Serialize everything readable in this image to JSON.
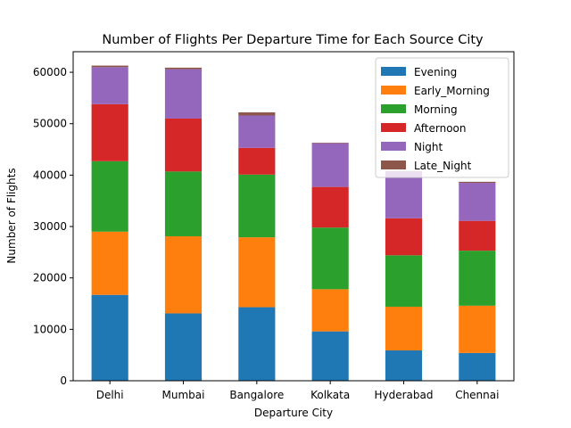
{
  "chart_data": {
    "type": "bar",
    "stacked": true,
    "title": "Number of Flights Per Departure Time for Each Source City",
    "xlabel": "Departure City",
    "ylabel": "Number of Flights",
    "categories": [
      "Delhi",
      "Mumbai",
      "Bangalore",
      "Kolkata",
      "Hyderabad",
      "Chennai"
    ],
    "ylim": [
      0,
      64000
    ],
    "yticks": [
      0,
      10000,
      20000,
      30000,
      40000,
      50000,
      60000
    ],
    "ytick_labels": [
      "0",
      "10000",
      "20000",
      "30000",
      "40000",
      "50000",
      "60000"
    ],
    "grid": false,
    "legend_position": "top-right",
    "series": [
      {
        "name": "Evening",
        "color": "#1f77b4",
        "values": [
          16700,
          13100,
          14300,
          9600,
          5900,
          5400
        ]
      },
      {
        "name": "Early_Morning",
        "color": "#ff7f0e",
        "values": [
          12300,
          15000,
          13600,
          8200,
          8500,
          9200
        ]
      },
      {
        "name": "Morning",
        "color": "#2ca02c",
        "values": [
          13700,
          12600,
          12200,
          12000,
          10000,
          10700
        ]
      },
      {
        "name": "Afternoon",
        "color": "#d62728",
        "values": [
          11100,
          10300,
          5200,
          7900,
          7200,
          5800
        ]
      },
      {
        "name": "Night",
        "color": "#9467bd",
        "values": [
          7200,
          9600,
          6300,
          8500,
          9100,
          7400
        ]
      },
      {
        "name": "Late_Night",
        "color": "#8c564b",
        "values": [
          300,
          300,
          600,
          100,
          100,
          200
        ]
      }
    ]
  }
}
